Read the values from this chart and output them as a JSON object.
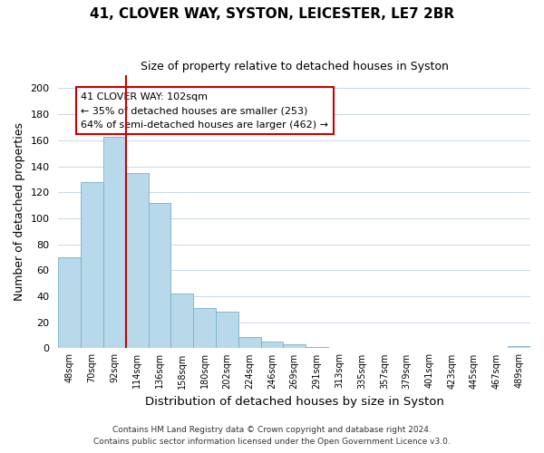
{
  "title": "41, CLOVER WAY, SYSTON, LEICESTER, LE7 2BR",
  "subtitle": "Size of property relative to detached houses in Syston",
  "xlabel": "Distribution of detached houses by size in Syston",
  "ylabel": "Number of detached properties",
  "bar_labels": [
    "48sqm",
    "70sqm",
    "92sqm",
    "114sqm",
    "136sqm",
    "158sqm",
    "180sqm",
    "202sqm",
    "224sqm",
    "246sqm",
    "269sqm",
    "291sqm",
    "313sqm",
    "335sqm",
    "357sqm",
    "379sqm",
    "401sqm",
    "423sqm",
    "445sqm",
    "467sqm",
    "489sqm"
  ],
  "bar_values": [
    70,
    128,
    163,
    135,
    112,
    42,
    31,
    28,
    9,
    5,
    3,
    1,
    0,
    0,
    0,
    0,
    0,
    0,
    0,
    0,
    2
  ],
  "bar_color": "#b8d9ea",
  "bar_edge_color": "#7baecb",
  "vline_x": 2.5,
  "vline_color": "#cc0000",
  "ylim": [
    0,
    210
  ],
  "yticks": [
    0,
    20,
    40,
    60,
    80,
    100,
    120,
    140,
    160,
    180,
    200
  ],
  "ann_line1": "41 CLOVER WAY: 102sqm",
  "ann_line2": "← 35% of detached houses are smaller (253)",
  "ann_line3": "64% of semi-detached houses are larger (462) →",
  "annotation_box_color": "#ffffff",
  "annotation_box_edge": "#cc0000",
  "footer1": "Contains HM Land Registry data © Crown copyright and database right 2024.",
  "footer2": "Contains public sector information licensed under the Open Government Licence v3.0.",
  "background_color": "#ffffff",
  "grid_color": "#c8d8e8"
}
